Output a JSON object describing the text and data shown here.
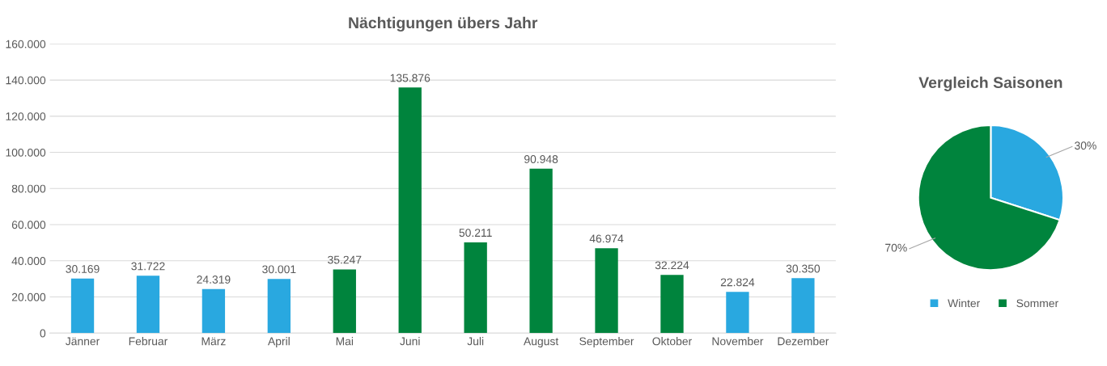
{
  "chart_data": [
    {
      "type": "bar",
      "title": "Nächtigungen übers Jahr",
      "categories": [
        "Jänner",
        "Februar",
        "März",
        "April",
        "Mai",
        "Juni",
        "Juli",
        "August",
        "September",
        "Oktober",
        "November",
        "Dezember"
      ],
      "values": [
        30169,
        31722,
        24319,
        30001,
        35247,
        135876,
        50211,
        90948,
        46974,
        32224,
        22824,
        30350
      ],
      "colors": [
        "#29a8e0",
        "#29a8e0",
        "#29a8e0",
        "#29a8e0",
        "#00843d",
        "#00843d",
        "#00843d",
        "#00843d",
        "#00843d",
        "#00843d",
        "#29a8e0",
        "#29a8e0"
      ],
      "value_labels": [
        "30.169",
        "31.722",
        "24.319",
        "30.001",
        "35.247",
        "135.876",
        "50.211",
        "90.948",
        "46.974",
        "32.224",
        "22.824",
        "30.350"
      ],
      "ylim": [
        0,
        160000
      ],
      "yticks": [
        0,
        {
          "value": 20000,
          "label": "20.000"
        },
        {
          "value": 40000,
          "label": "40.000"
        },
        {
          "value": 60000,
          "label": "60.000"
        },
        {
          "value": 80000,
          "label": "80.000"
        },
        {
          "value": 100000,
          "label": "100.000"
        },
        {
          "value": 120000,
          "label": "120.000"
        },
        {
          "value": 140000,
          "label": "140.000"
        },
        {
          "value": 160000,
          "label": "160.000"
        }
      ],
      "grid": "y"
    },
    {
      "type": "pie",
      "title": "Vergleich Saisonen",
      "categories": [
        "Winter",
        "Sommer"
      ],
      "values": [
        30,
        70
      ],
      "colors": [
        "#29a8e0",
        "#00843d"
      ],
      "value_labels": [
        "30%",
        "70%"
      ],
      "legend": "bottom"
    }
  ]
}
